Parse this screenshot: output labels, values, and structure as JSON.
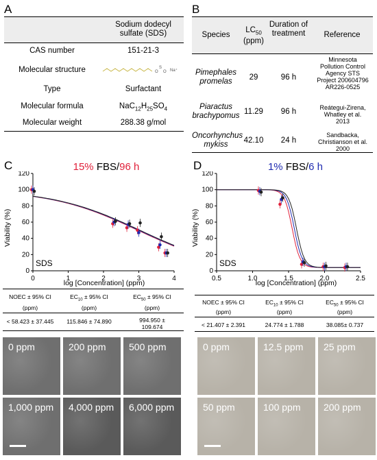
{
  "panels": {
    "A": "A",
    "B": "B",
    "C": "C",
    "D": "D"
  },
  "tableA": {
    "header": "Sodium dodecyl sulfate (SDS)",
    "rows": [
      {
        "label": "CAS number",
        "value": "151-21-3"
      },
      {
        "label": "Molecular structure",
        "value": ""
      },
      {
        "label": "Type",
        "value": "Surfactant"
      },
      {
        "label": "Molecular formula",
        "value": "NaC12H25SO4"
      },
      {
        "label": "Molecular weight",
        "value": "288.38 g/mol"
      }
    ]
  },
  "tableB": {
    "headers": {
      "species": "Species",
      "lc": "LC50 (ppm)",
      "duration": "Duration of treatment",
      "ref": "Reference"
    },
    "rows": [
      {
        "species": "Pimephales promelas",
        "lc": "29",
        "duration": "96 h",
        "ref": "Minnesota Pollution Control Agency STS Project 200604796 AR226-0525"
      },
      {
        "species": "Piaractus brachypomus",
        "lc": "11.29",
        "duration": "96 h",
        "ref": "Reátegui-Zirena, Whatley et al. 2013"
      },
      {
        "species": "Oncorhynchus mykiss",
        "lc": "42.10",
        "duration": "24 h",
        "ref": "Sandbacka, Christianson et al. 2000"
      }
    ]
  },
  "chartC": {
    "title_pct": "15%",
    "title_mid": " FBS/",
    "title_time": "96 h",
    "label": "SDS",
    "ylabel": "Viability (%)",
    "xlabel": "log [Concentration] (ppm)"
  },
  "chartD": {
    "title_pct": "1%",
    "title_mid": " FBS/",
    "title_time": "6 h",
    "label": "SDS",
    "ylabel": "Viability (%)",
    "xlabel": "log [Concentration] (ppm)"
  },
  "chart_data": [
    {
      "type": "scatter",
      "title": "15% FBS/96 h",
      "xlabel": "log [Concentration] (ppm)",
      "ylabel": "Viability (%)",
      "xlim": [
        0,
        4
      ],
      "ylim": [
        0,
        120
      ],
      "xticks": [
        0,
        1,
        2,
        3,
        4
      ],
      "yticks": [
        0,
        20,
        40,
        60,
        80,
        100,
        120
      ],
      "x": [
        0,
        2.3,
        2.7,
        3.0,
        3.6,
        3.78
      ],
      "series": [
        {
          "color": "#e0203a",
          "values": [
            100,
            58,
            53,
            50,
            29,
            22
          ]
        },
        {
          "color": "#1f2bb0",
          "values": [
            100,
            60,
            57,
            47,
            32,
            22
          ]
        },
        {
          "color": "#222222",
          "values": [
            98,
            61,
            58,
            59,
            42,
            22
          ]
        }
      ],
      "fit": {
        "top": 100,
        "bottom": 0,
        "logEC50": 3.0,
        "hill": 0.35
      }
    },
    {
      "type": "scatter",
      "title": "1% FBS/6 h",
      "xlabel": "log [Concentration] (ppm)",
      "ylabel": "Viability (%)",
      "xlim": [
        0.5,
        2.5
      ],
      "ylim": [
        0,
        120
      ],
      "xticks": [
        0.5,
        1.0,
        1.5,
        2.0,
        2.5
      ],
      "yticks": [
        0,
        20,
        40,
        60,
        80,
        100,
        120
      ],
      "x": [
        1.1,
        1.4,
        1.7,
        2.0,
        2.3
      ],
      "series": [
        {
          "color": "#e0203a",
          "values": [
            99,
            82,
            8,
            5,
            4
          ]
        },
        {
          "color": "#1f2bb0",
          "values": [
            98,
            88,
            11,
            5,
            5
          ]
        },
        {
          "color": "#222222",
          "values": [
            97,
            90,
            10,
            6,
            5
          ]
        }
      ],
      "fit": {
        "top": 100,
        "bottom": 4,
        "logEC50": 1.58,
        "hill": 8
      }
    }
  ],
  "summaryC": {
    "headers": [
      "NOEC ± 95% CI",
      "EC10 ± 95% CI",
      "EC50 ± 95% CI"
    ],
    "units": [
      "(ppm)",
      "(ppm)",
      "(ppm)"
    ],
    "values": [
      "< 58.423 ± 37.445",
      "115.846 ± 74.890",
      "994.950 ± 109.674"
    ]
  },
  "summaryD": {
    "headers": [
      "NOEC ± 95% CI",
      "EC10 ± 95% CI",
      "EC50 ± 95% CI"
    ],
    "units": [
      "(ppm)",
      "(ppm)",
      "(ppm)"
    ],
    "values": [
      "< 21.407 ± 2.391",
      "24.774 ± 1.788",
      "38.085± 0.737"
    ]
  },
  "imagesC": [
    "0 ppm",
    "200 ppm",
    "500 ppm",
    "1,000 ppm",
    "4,000 ppm",
    "6,000 ppm"
  ],
  "imagesD": [
    "0 ppm",
    "12.5 ppm",
    "25 ppm",
    "50 ppm",
    "100 ppm",
    "200 ppm"
  ]
}
